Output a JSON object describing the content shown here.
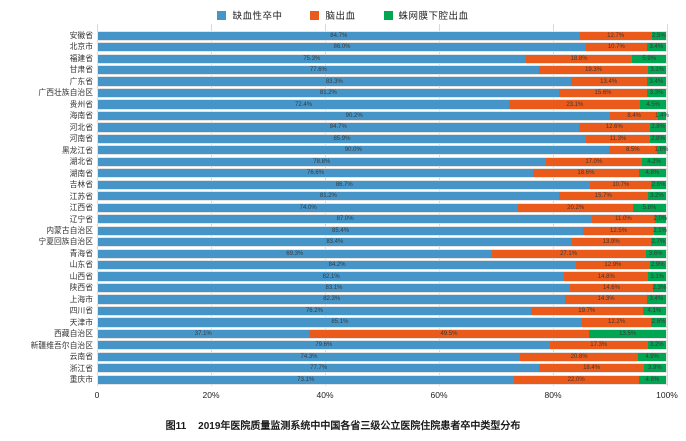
{
  "legend": [
    {
      "label": "缺血性卒中",
      "color": "#4695c8"
    },
    {
      "label": "脑出血",
      "color": "#e95a1b"
    },
    {
      "label": "蛛网膜下腔出血",
      "color": "#00a651"
    }
  ],
  "caption": {
    "figure_label": "图11",
    "title": "2019年医院质量监测系统中中国各省三级公立医院住院患者卒中类型分布"
  },
  "chart_data": {
    "type": "bar",
    "orientation": "horizontal",
    "stacked": true,
    "unit": "percent",
    "xlim": [
      0,
      100
    ],
    "grid": true,
    "legend_position": "top",
    "x_ticks": [
      "0",
      "20%",
      "40%",
      "60%",
      "80%",
      "100%"
    ],
    "series_names": [
      "缺血性卒中",
      "脑出血",
      "蛛网膜下腔出血"
    ],
    "categories": [
      "安徽省",
      "北京市",
      "福建省",
      "甘肃省",
      "广东省",
      "广西壮族自治区",
      "贵州省",
      "海南省",
      "河北省",
      "河南省",
      "黑龙江省",
      "湖北省",
      "湖南省",
      "吉林省",
      "江苏省",
      "江西省",
      "辽宁省",
      "内蒙古自治区",
      "宁夏回族自治区",
      "青海省",
      "山东省",
      "山西省",
      "陕西省",
      "上海市",
      "四川省",
      "天津市",
      "西藏自治区",
      "新疆维吾尔自治区",
      "云南省",
      "浙江省",
      "重庆市"
    ],
    "rows": [
      {
        "province": "安徽省",
        "values": [
          84.7,
          12.7,
          2.5
        ]
      },
      {
        "province": "北京市",
        "values": [
          86.0,
          10.7,
          3.4
        ]
      },
      {
        "province": "福建省",
        "values": [
          75.3,
          18.8,
          5.9
        ]
      },
      {
        "province": "甘肃省",
        "values": [
          77.6,
          19.3,
          3.1
        ]
      },
      {
        "province": "广东省",
        "values": [
          83.3,
          13.4,
          3.4
        ]
      },
      {
        "province": "广西壮族自治区",
        "values": [
          81.2,
          15.6,
          3.3
        ]
      },
      {
        "province": "贵州省",
        "values": [
          72.4,
          23.1,
          4.5
        ]
      },
      {
        "province": "海南省",
        "values": [
          90.2,
          8.4,
          1.4
        ]
      },
      {
        "province": "河北省",
        "values": [
          84.7,
          12.6,
          2.8
        ]
      },
      {
        "province": "河南省",
        "values": [
          85.9,
          11.3,
          2.8
        ]
      },
      {
        "province": "黑龙江省",
        "values": [
          90.0,
          8.5,
          1.6
        ]
      },
      {
        "province": "湖北省",
        "values": [
          78.8,
          17.0,
          4.2
        ]
      },
      {
        "province": "湖南省",
        "values": [
          76.6,
          18.6,
          4.8
        ]
      },
      {
        "province": "吉林省",
        "values": [
          86.7,
          10.7,
          2.6
        ]
      },
      {
        "province": "江苏省",
        "values": [
          81.2,
          15.7,
          3.2
        ]
      },
      {
        "province": "江西省",
        "values": [
          74.0,
          20.2,
          5.8
        ]
      },
      {
        "province": "辽宁省",
        "values": [
          87.0,
          11.0,
          2.0
        ]
      },
      {
        "province": "内蒙古自治区",
        "values": [
          85.4,
          12.5,
          2.1
        ]
      },
      {
        "province": "宁夏回族自治区",
        "values": [
          83.4,
          13.9,
          2.7
        ]
      },
      {
        "province": "青海省",
        "values": [
          69.3,
          27.1,
          3.6
        ]
      },
      {
        "province": "山东省",
        "values": [
          84.2,
          12.9,
          2.9
        ]
      },
      {
        "province": "山西省",
        "values": [
          82.1,
          14.8,
          3.1
        ]
      },
      {
        "province": "陕西省",
        "values": [
          83.1,
          14.6,
          2.3
        ]
      },
      {
        "province": "上海市",
        "values": [
          82.3,
          14.3,
          3.4
        ]
      },
      {
        "province": "四川省",
        "values": [
          76.2,
          19.7,
          4.1
        ]
      },
      {
        "province": "天津市",
        "values": [
          85.1,
          12.2,
          2.6
        ]
      },
      {
        "province": "西藏自治区",
        "values": [
          37.1,
          49.5,
          13.5
        ]
      },
      {
        "province": "新疆维吾尔自治区",
        "values": [
          79.6,
          17.3,
          3.2
        ]
      },
      {
        "province": "云南省",
        "values": [
          74.3,
          20.8,
          4.9
        ]
      },
      {
        "province": "浙江省",
        "values": [
          77.7,
          18.4,
          3.9
        ]
      },
      {
        "province": "重庆市",
        "values": [
          73.1,
          22.0,
          4.8
        ]
      }
    ]
  }
}
